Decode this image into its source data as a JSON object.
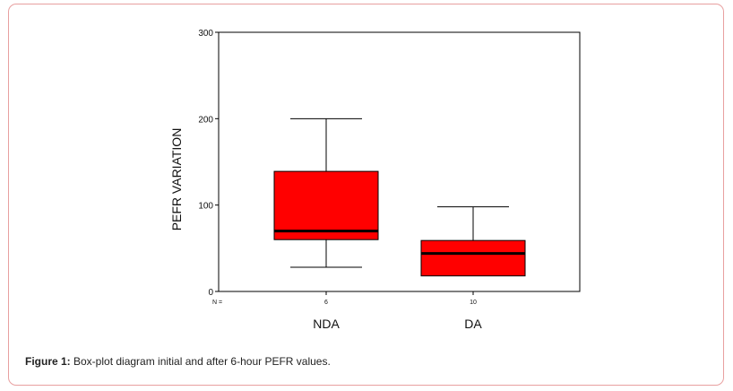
{
  "figure": {
    "caption_label": "Figure 1:",
    "caption_text": " Box-plot diagram initial and after 6-hour PEFR values."
  },
  "chart_data": {
    "type": "boxplot",
    "ylabel": "PEFR VARIATION",
    "ylim": [
      0,
      300
    ],
    "yticks": [
      0,
      100,
      200,
      300
    ],
    "n_label": "N =",
    "categories": [
      "NDA",
      "DA"
    ],
    "n_values": [
      "6",
      "10"
    ],
    "series": [
      {
        "category": "NDA",
        "min": 28,
        "q1": 60,
        "median": 70,
        "q3": 139,
        "max": 200
      },
      {
        "category": "DA",
        "min": 18,
        "q1": 18,
        "median": 44,
        "q3": 59,
        "max": 98
      }
    ],
    "box_color": "#ff0000",
    "grid": false
  }
}
